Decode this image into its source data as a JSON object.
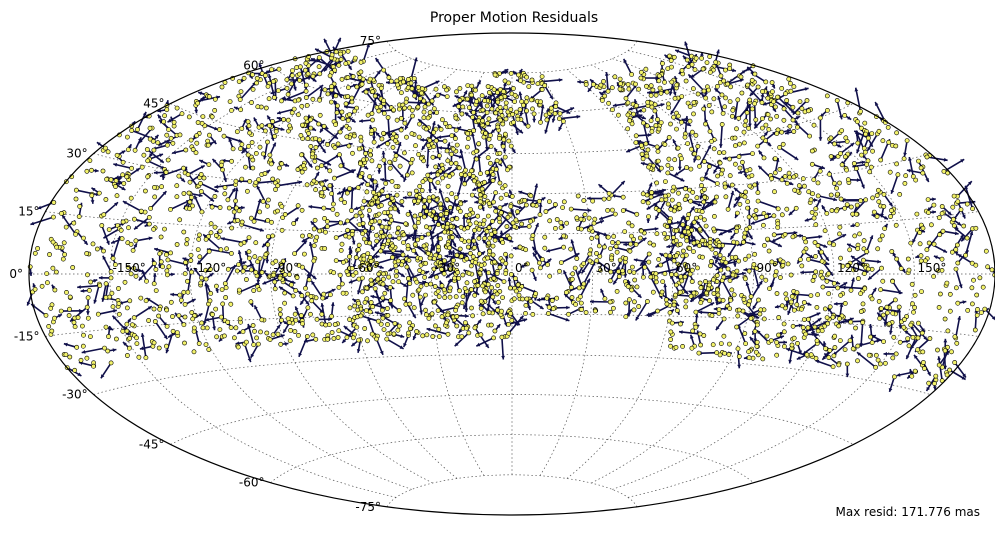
{
  "chart_data": {
    "type": "scatter",
    "title": "Proper Motion Residuals",
    "projection": "aitoff",
    "annotation": "Max resid: 171.776 mas",
    "latitude_ticks": [
      "75°",
      "60°",
      "45°",
      "30°",
      "15°",
      "0°",
      "-15°",
      "-30°",
      "-45°",
      "-60°",
      "-75°"
    ],
    "longitude_ticks": [
      "-150°",
      "-120°",
      "-90°",
      "-60°",
      "-30°",
      "0°",
      "30°",
      "60°",
      "90°",
      "120°",
      "150°"
    ],
    "grid": true,
    "point_color": "#f2f26a",
    "arrow_color": "#10104a",
    "regions": [
      {
        "lon": [
          -180,
          0
        ],
        "lat": [
          -24,
          70
        ]
      },
      {
        "lon": [
          -60,
          80
        ],
        "lat": [
          -16,
          30
        ]
      },
      {
        "lon": [
          60,
          180
        ],
        "lat": [
          -28,
          70
        ]
      },
      {
        "lon": [
          -20,
          30
        ],
        "lat": [
          55,
          75
        ]
      }
    ]
  }
}
